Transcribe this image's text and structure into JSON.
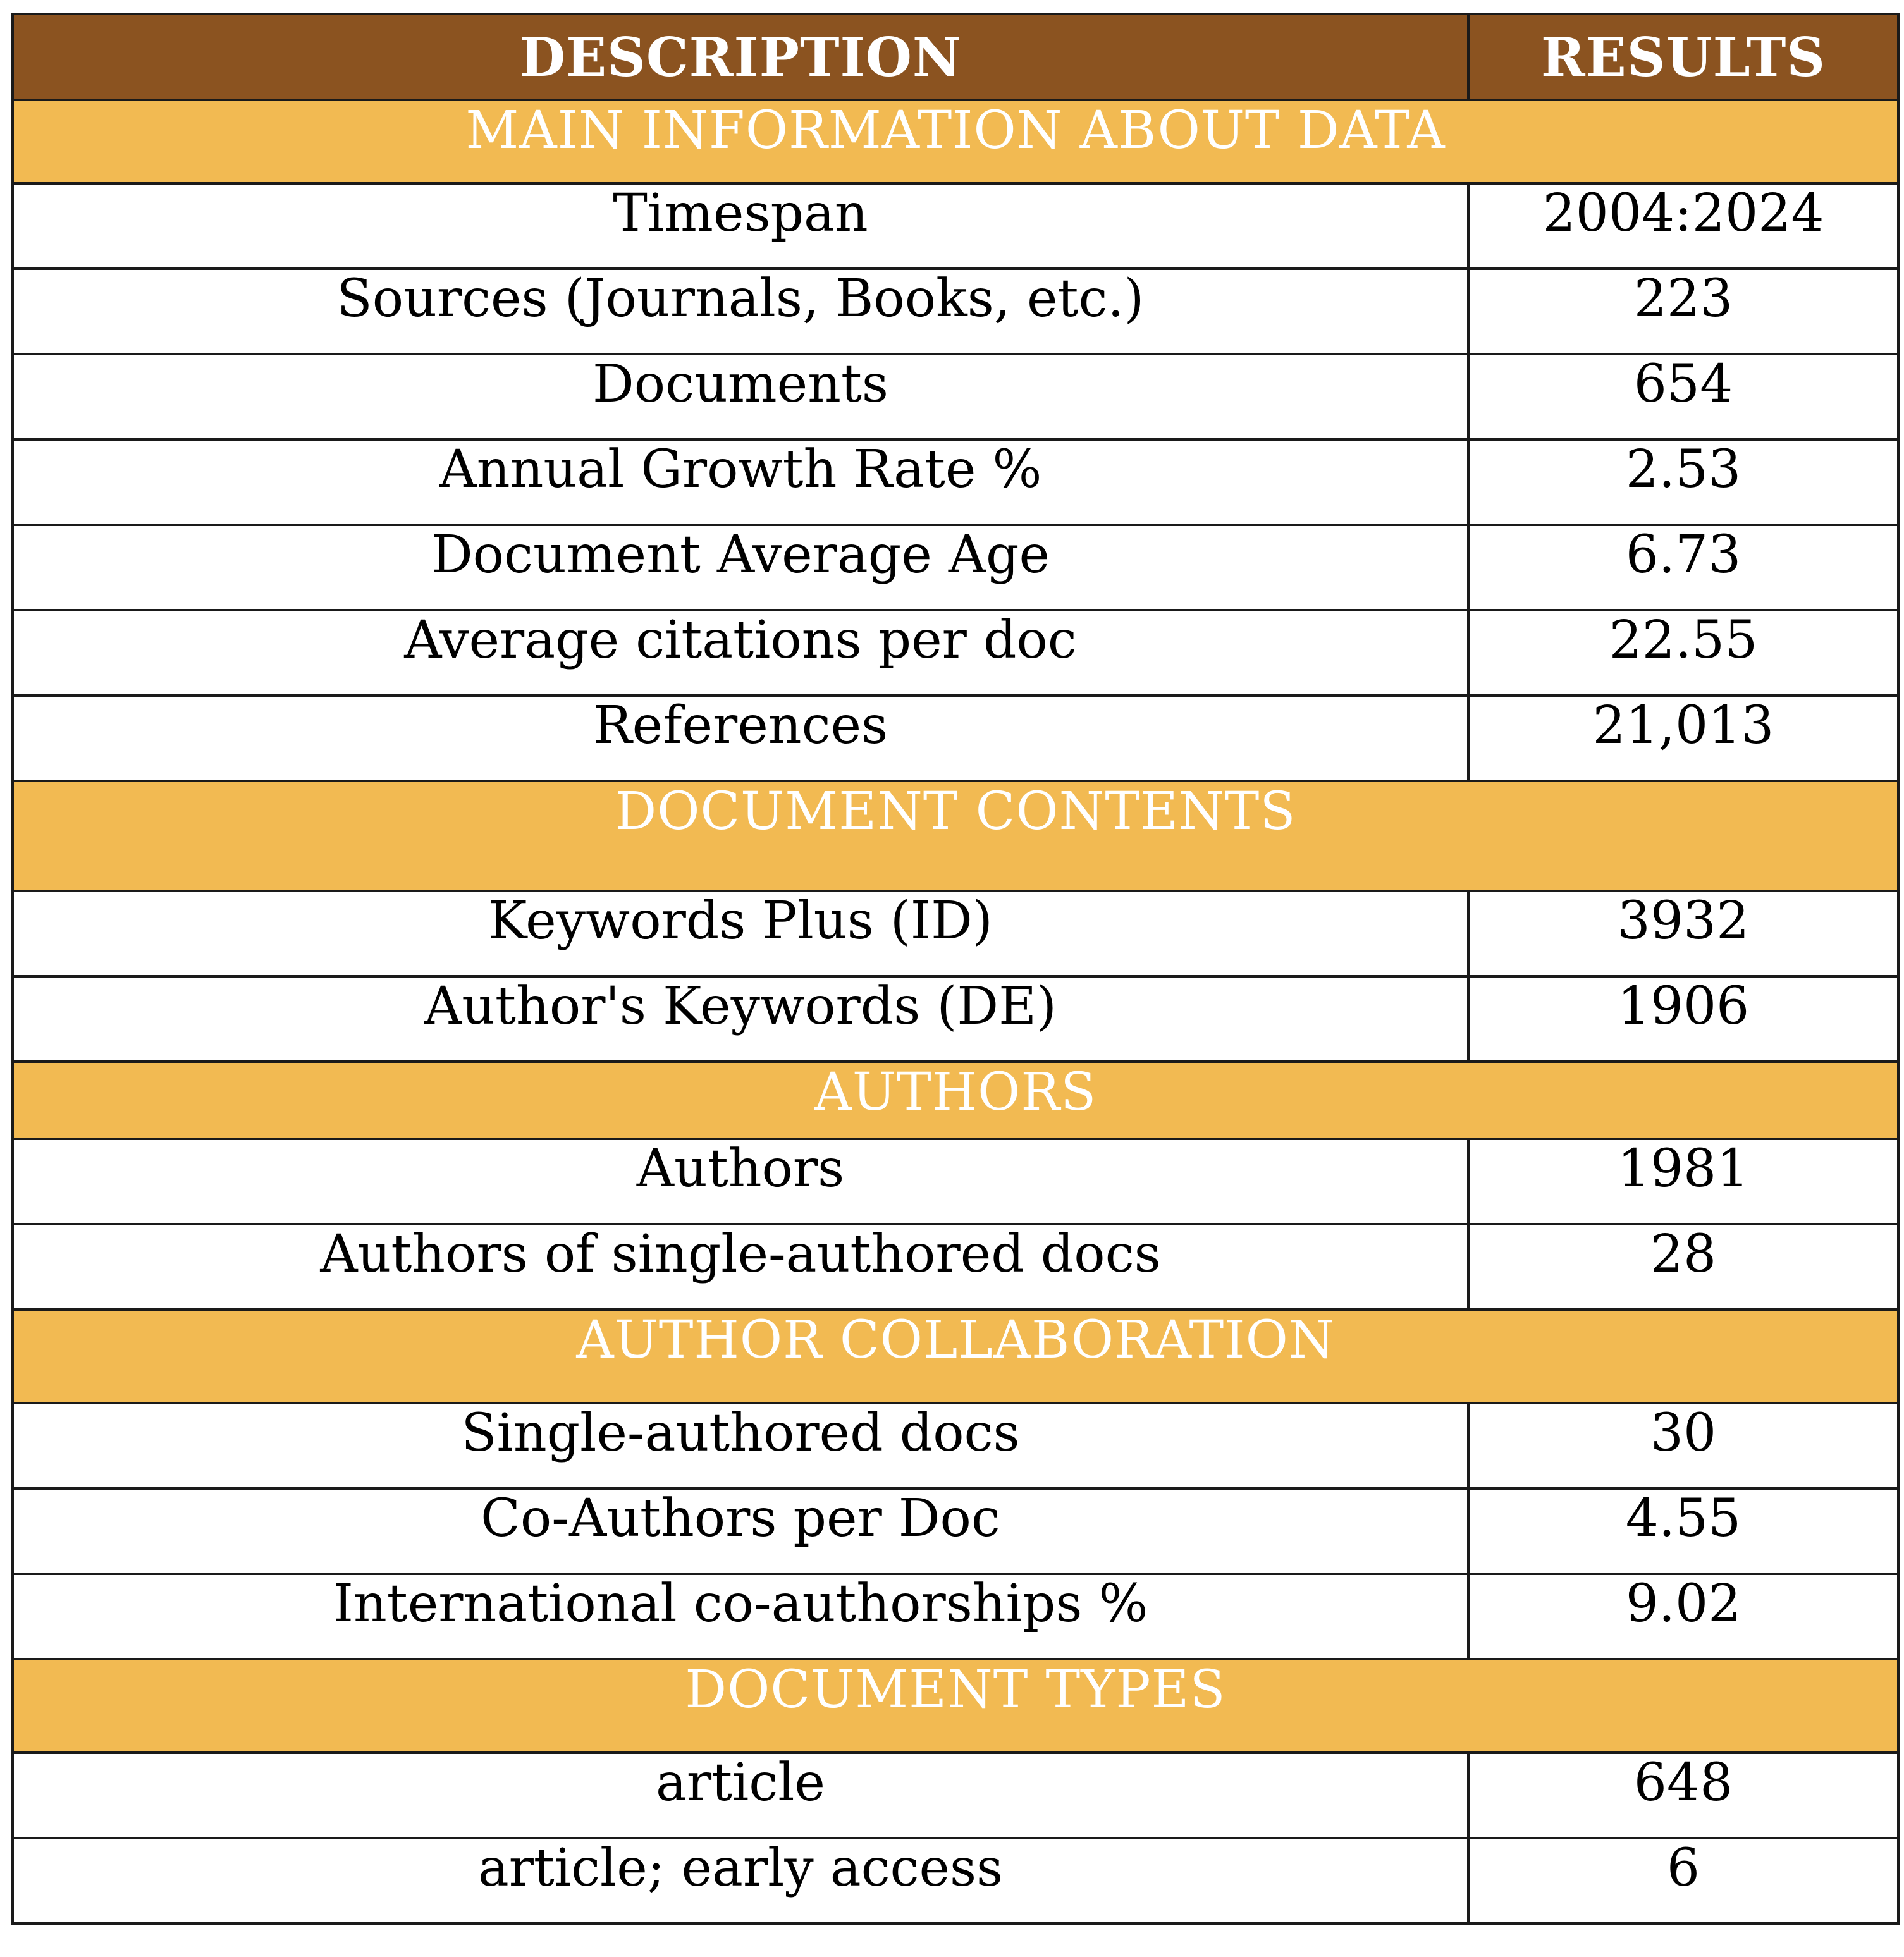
{
  "header": {
    "col_description": "DESCRIPTION",
    "col_results": "RESULTS"
  },
  "sections": {
    "main_info": {
      "title": "MAIN INFORMATION ABOUT DATA",
      "rows": [
        {
          "label": "Timespan",
          "value": "2004:2024"
        },
        {
          "label": "Sources (Journals, Books, etc.)",
          "value": "223"
        },
        {
          "label": "Documents",
          "value": "654"
        },
        {
          "label": "Annual Growth Rate %",
          "value": "2.53"
        },
        {
          "label": "Document Average Age",
          "value": "6.73"
        },
        {
          "label": "Average citations per doc",
          "value": "22.55"
        },
        {
          "label": "References",
          "value": "21,013"
        }
      ]
    },
    "doc_contents": {
      "title": "DOCUMENT CONTENTS",
      "rows": [
        {
          "label": "Keywords Plus (ID)",
          "value": "3932"
        },
        {
          "label": "Author's Keywords (DE)",
          "value": "1906"
        }
      ]
    },
    "authors": {
      "title": "AUTHORS",
      "rows": [
        {
          "label": "Authors",
          "value": "1981"
        },
        {
          "label": "Authors of single-authored docs",
          "value": "28"
        }
      ]
    },
    "collaboration": {
      "title": "AUTHOR COLLABORATION",
      "rows": [
        {
          "label": "Single-authored docs",
          "value": "30"
        },
        {
          "label": "Co-Authors per Doc",
          "value": "4.55"
        },
        {
          "label": "International co-authorships %",
          "value": "9.02"
        }
      ]
    },
    "doc_types": {
      "title": "DOCUMENT TYPES",
      "rows": [
        {
          "label": "article",
          "value": "648"
        },
        {
          "label": "article; early access",
          "value": "6"
        }
      ]
    }
  },
  "colors": {
    "header_bg": "#8B5320",
    "section_bg": "#F2BA52",
    "header_text": "#ffffff",
    "section_text": "#ffffff",
    "border": "#1a1a1a"
  }
}
